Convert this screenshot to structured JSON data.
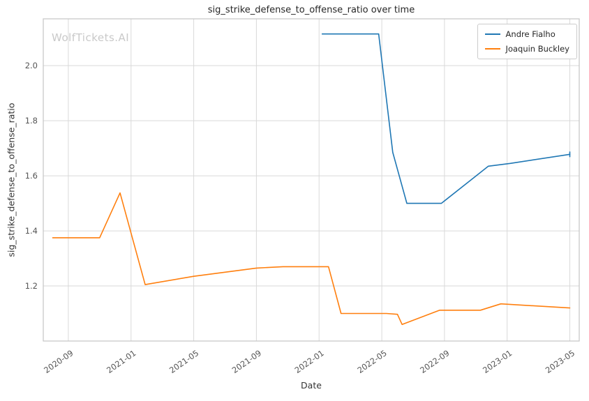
{
  "watermark": "WolfTickets.AI",
  "chart_data": {
    "type": "line",
    "title": "sig_strike_defense_to_offense_ratio over time",
    "xlabel": "Date",
    "ylabel": "sig_strike_defense_to_offense_ratio",
    "x_encoding": "months since 2020-01 (0 = 2020-01)",
    "xlim": [
      6.4,
      40.6
    ],
    "ylim": [
      1.0,
      2.17
    ],
    "grid": true,
    "legend_position": "upper right",
    "colors": {
      "grid": "#d9d9d9",
      "spine": "#c4c4c4",
      "tick_label": "#555555",
      "title": "#262626",
      "watermark": "#c9c9c9"
    },
    "yticks": [
      {
        "v": 1.2,
        "label": "1.2"
      },
      {
        "v": 1.4,
        "label": "1.4"
      },
      {
        "v": 1.6,
        "label": "1.6"
      },
      {
        "v": 1.8,
        "label": "1.8"
      },
      {
        "v": 2.0,
        "label": "2.0"
      }
    ],
    "xticks": [
      {
        "v": 8,
        "label": "2020-09"
      },
      {
        "v": 12,
        "label": "2021-01"
      },
      {
        "v": 16,
        "label": "2021-05"
      },
      {
        "v": 20,
        "label": "2021-09"
      },
      {
        "v": 24,
        "label": "2022-01"
      },
      {
        "v": 28,
        "label": "2022-05"
      },
      {
        "v": 32,
        "label": "2022-09"
      },
      {
        "v": 36,
        "label": "2023-01"
      },
      {
        "v": 40,
        "label": "2023-05"
      }
    ],
    "series": [
      {
        "name": "Andre Fialho",
        "color": "#1f77b4",
        "end_tick": true,
        "points": [
          [
            24.2,
            2.115
          ],
          [
            27.8,
            2.115
          ],
          [
            28.7,
            1.685
          ],
          [
            29.6,
            1.5
          ],
          [
            31.8,
            1.5
          ],
          [
            34.8,
            1.635
          ],
          [
            36.2,
            1.645
          ],
          [
            40.0,
            1.678
          ]
        ]
      },
      {
        "name": "Joaquin Buckley",
        "color": "#ff7f0e",
        "end_tick": false,
        "points": [
          [
            7.0,
            1.375
          ],
          [
            10.0,
            1.375
          ],
          [
            11.3,
            1.538
          ],
          [
            12.9,
            1.205
          ],
          [
            16.0,
            1.235
          ],
          [
            20.0,
            1.265
          ],
          [
            21.7,
            1.27
          ],
          [
            24.6,
            1.27
          ],
          [
            25.4,
            1.1
          ],
          [
            28.3,
            1.1
          ],
          [
            29.0,
            1.097
          ],
          [
            29.3,
            1.06
          ],
          [
            31.7,
            1.112
          ],
          [
            34.3,
            1.112
          ],
          [
            35.6,
            1.135
          ],
          [
            40.0,
            1.12
          ]
        ]
      }
    ]
  }
}
